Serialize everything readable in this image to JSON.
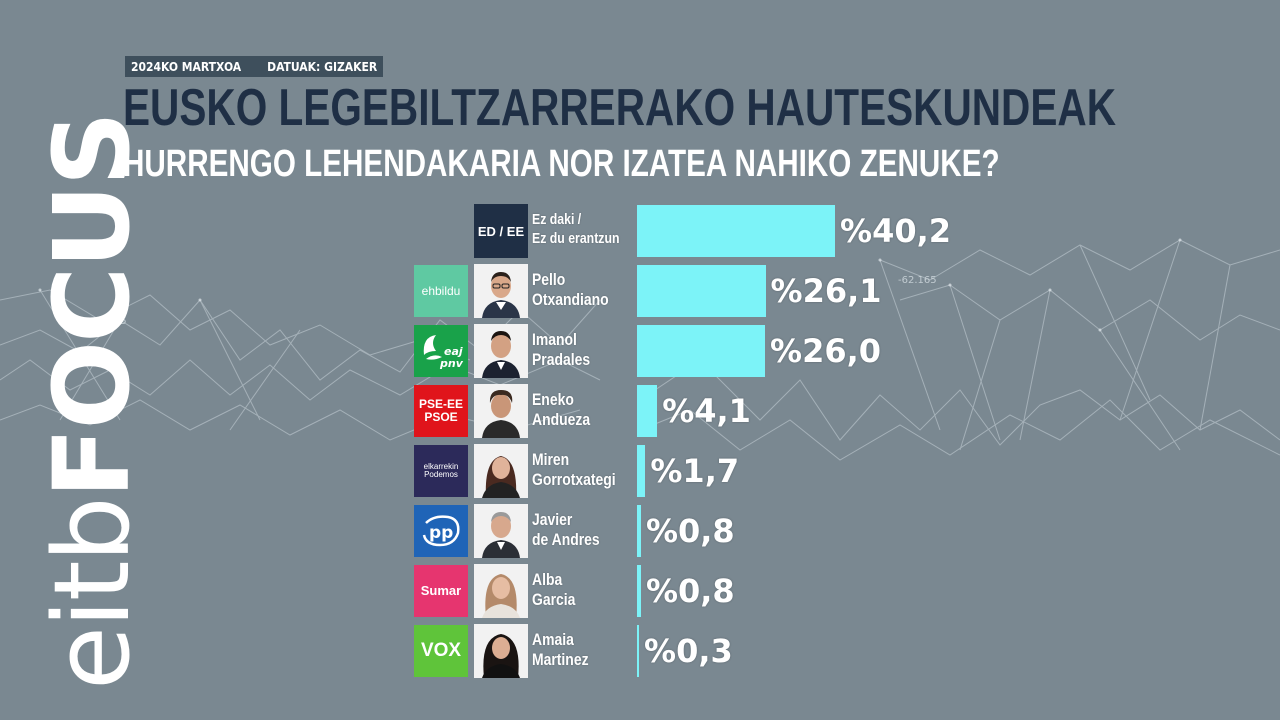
{
  "header": {
    "date": "2024KO MARTXOA",
    "source": "DATUAK: GIZAKER",
    "title": "EUSKO LEGEBILTZARRERAKO HAUTESKUNDEAK",
    "subtitle": "HURRENGO LEHENDAKARIA NOR IZATEA NAHIKO ZENUKE?"
  },
  "branding": {
    "logo_text_light": "eitb",
    "logo_text_bold": "FOCUS"
  },
  "background_labels": [
    "-62.165",
    "-62.165"
  ],
  "colors": {
    "background": "#7a8891",
    "bar": "#7cf3f8",
    "title": "#1f2f45",
    "meta_bg": "#3e4f5c"
  },
  "chart_data": {
    "type": "bar",
    "orientation": "horizontal",
    "xlim": [
      0,
      40.2
    ],
    "categories": [
      "Ez daki / Ez du erantzun",
      "Pello Otxandiano",
      "Imanol Pradales",
      "Eneko Andueza",
      "Miren Gorrotxategi",
      "Javier de Andres",
      "Alba Garcia",
      "Amaia Martinez"
    ],
    "values": [
      40.2,
      26.1,
      26.0,
      4.1,
      1.7,
      0.8,
      0.8,
      0.3
    ],
    "value_labels": [
      "%40,2",
      "%26,1",
      "%26,0",
      "%4,1",
      "%1,7",
      "%0,8",
      "%0,8",
      "%0,3"
    ]
  },
  "rows": [
    {
      "party": "",
      "party_icon": "none",
      "nd_box": "ED / EE",
      "name": "Ez daki /\nEz du erantzun",
      "party_color": ""
    },
    {
      "party": "ehbildu",
      "party_icon": "ehbildu-logo",
      "name": "Pello\nOtxandiano",
      "party_color": "#5fc9a2"
    },
    {
      "party": "eaj pnv",
      "party_icon": "eaj-pnv-logo",
      "name": "Imanol\nPradales",
      "party_color": "#19a24a"
    },
    {
      "party": "PSE-EE\nPSOE",
      "party_icon": "pse-ee-psoe-logo",
      "name": "Eneko\nAndueza",
      "party_color": "#e0141b"
    },
    {
      "party": "elkarrekin\nPodemos",
      "party_icon": "elkarrekin-podemos-logo",
      "name": "Miren\nGorrotxategi",
      "party_color": "#2c2a5a"
    },
    {
      "party": "pp",
      "party_icon": "pp-logo",
      "name": "Javier\nde Andres",
      "party_color": "#1f64b7"
    },
    {
      "party": "Sumar",
      "party_icon": "sumar-logo",
      "name": "Alba\nGarcia",
      "party_color": "#e6356f"
    },
    {
      "party": "VOX",
      "party_icon": "vox-logo",
      "name": "Amaia\nMartinez",
      "party_color": "#5fc43a"
    }
  ]
}
